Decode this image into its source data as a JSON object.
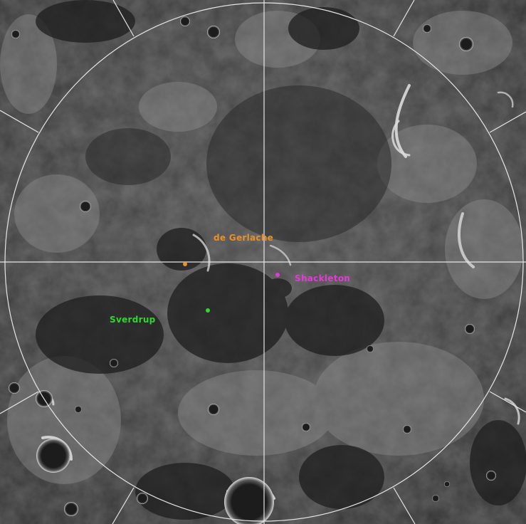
{
  "map": {
    "features": [
      {
        "id": "de-gerlache",
        "name": "de Gerlache",
        "color": "#e8902a"
      },
      {
        "id": "shackleton",
        "name": "Shackleton",
        "color": "#e23bd6"
      },
      {
        "id": "sverdrup",
        "name": "Sverdrup",
        "color": "#2ed82e"
      }
    ],
    "graticule_color": "#e6e6e6"
  }
}
